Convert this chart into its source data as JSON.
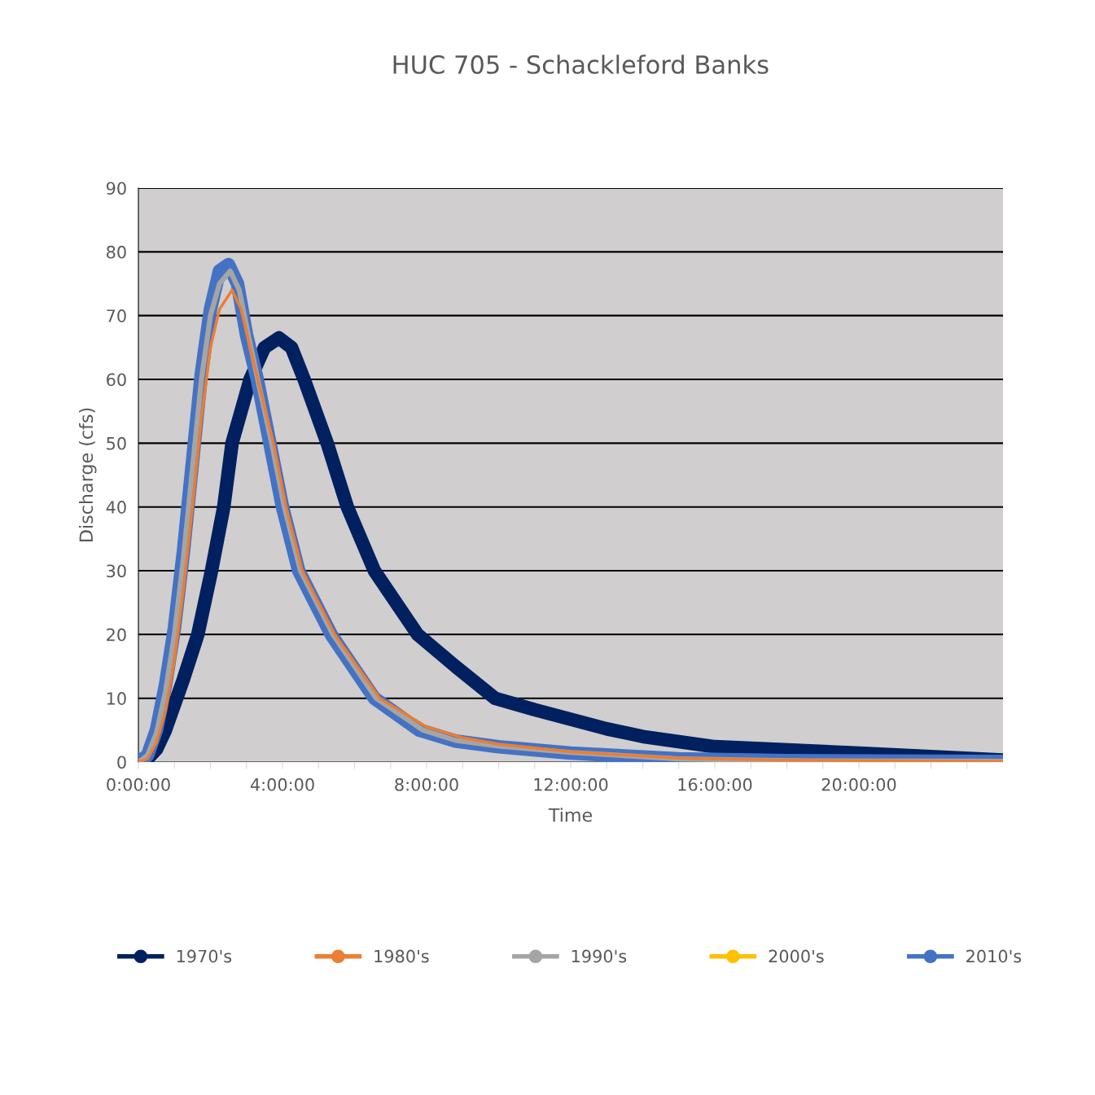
{
  "chart_data": {
    "type": "line",
    "title": "HUC 705 - Schackleford Banks",
    "xlabel": "Time",
    "ylabel": "Discharge (cfs)",
    "xlim": [
      0,
      24
    ],
    "ylim": [
      0,
      90
    ],
    "yticks": [
      0,
      10,
      20,
      30,
      40,
      50,
      60,
      70,
      80,
      90
    ],
    "xticks": [
      {
        "value": 0,
        "label": "0:00:00"
      },
      {
        "value": 1,
        "label": null
      },
      {
        "value": 2,
        "label": null
      },
      {
        "value": 3,
        "label": null
      },
      {
        "value": 4,
        "label": "4:00:00"
      },
      {
        "value": 5,
        "label": null
      },
      {
        "value": 6,
        "label": null
      },
      {
        "value": 7,
        "label": null
      },
      {
        "value": 8,
        "label": "8:00:00"
      },
      {
        "value": 9,
        "label": null
      },
      {
        "value": 10,
        "label": null
      },
      {
        "value": 11,
        "label": null
      },
      {
        "value": 12,
        "label": "12:00:00"
      },
      {
        "value": 13,
        "label": null
      },
      {
        "value": 14,
        "label": null
      },
      {
        "value": 15,
        "label": null
      },
      {
        "value": 16,
        "label": "16:00:00"
      },
      {
        "value": 17,
        "label": null
      },
      {
        "value": 18,
        "label": null
      },
      {
        "value": 19,
        "label": null
      },
      {
        "value": 20,
        "label": "20:00:00"
      },
      {
        "value": 21,
        "label": null
      },
      {
        "value": 22,
        "label": null
      },
      {
        "value": 23,
        "label": null
      }
    ],
    "grid": "y",
    "legend": "bottom",
    "marker": "circle",
    "line_style": "solid",
    "series": [
      {
        "name": "1970's",
        "color": "#002060",
        "x": [
          0,
          0.25,
          0.5,
          0.75,
          1.0,
          1.25,
          1.65,
          2.03,
          2.37,
          2.6,
          3.1,
          3.5,
          3.9,
          4.25,
          4.6,
          5.24,
          5.8,
          6.55,
          7.75,
          8.8,
          9.9,
          11,
          12,
          13,
          14,
          16,
          20,
          24
        ],
        "values": [
          0,
          0.5,
          2,
          5,
          9,
          13,
          20,
          30,
          40,
          50,
          60,
          65,
          66.5,
          65,
          60,
          50,
          40,
          30,
          20,
          15,
          10,
          8.2,
          6.7,
          5.2,
          4,
          2.4,
          1.4,
          0.3
        ]
      },
      {
        "name": "1980's",
        "color": "#ed7d31",
        "x": [
          0,
          0.25,
          0.5,
          0.75,
          1.0,
          1.25,
          1.5,
          1.75,
          2.0,
          2.25,
          2.6,
          2.85,
          3.1,
          3.4,
          3.75,
          4.1,
          4.55,
          5.45,
          6.7,
          8.0,
          9.0,
          10,
          12,
          15,
          18,
          24
        ],
        "values": [
          0,
          0.5,
          3,
          8,
          16,
          27,
          40,
          54,
          65,
          71,
          74,
          71,
          65,
          58,
          50,
          40,
          30,
          20,
          10,
          5.5,
          3.8,
          2.8,
          1.6,
          0.6,
          0.3,
          0.1
        ]
      },
      {
        "name": "1990's",
        "color": "#a5a5a5",
        "x": [
          0,
          0.25,
          0.5,
          0.75,
          1.0,
          1.25,
          1.5,
          1.75,
          2.0,
          2.25,
          2.55,
          2.8,
          3.05,
          3.35,
          3.7,
          4.05,
          4.5,
          5.4,
          6.6,
          7.9,
          8.8,
          10,
          12,
          15,
          18,
          24
        ],
        "values": [
          0,
          1,
          4.5,
          11,
          20,
          32,
          46,
          60,
          70,
          75,
          77,
          74,
          67,
          59,
          50,
          40,
          30,
          20,
          10,
          5,
          3.4,
          2.5,
          1.5,
          0.5,
          0.2,
          0.1
        ]
      },
      {
        "name": "2000's",
        "color": "#ffc000"
      },
      {
        "name": "2010's",
        "color": "#4472c4",
        "x": [
          0,
          0.25,
          0.5,
          0.75,
          1.0,
          1.25,
          1.5,
          1.75,
          2.0,
          2.25,
          2.5,
          2.75,
          3.0,
          3.3,
          3.65,
          4.0,
          4.45,
          5.35,
          6.55,
          7.8,
          8.8,
          10,
          12,
          15,
          18,
          24
        ],
        "values": [
          0,
          1,
          5,
          12,
          21,
          33,
          47,
          61,
          71,
          77,
          78,
          75,
          67,
          60,
          50,
          40,
          30,
          20,
          10,
          5,
          3.3,
          2.4,
          1.4,
          0.5,
          0.2,
          0.1
        ]
      }
    ]
  }
}
